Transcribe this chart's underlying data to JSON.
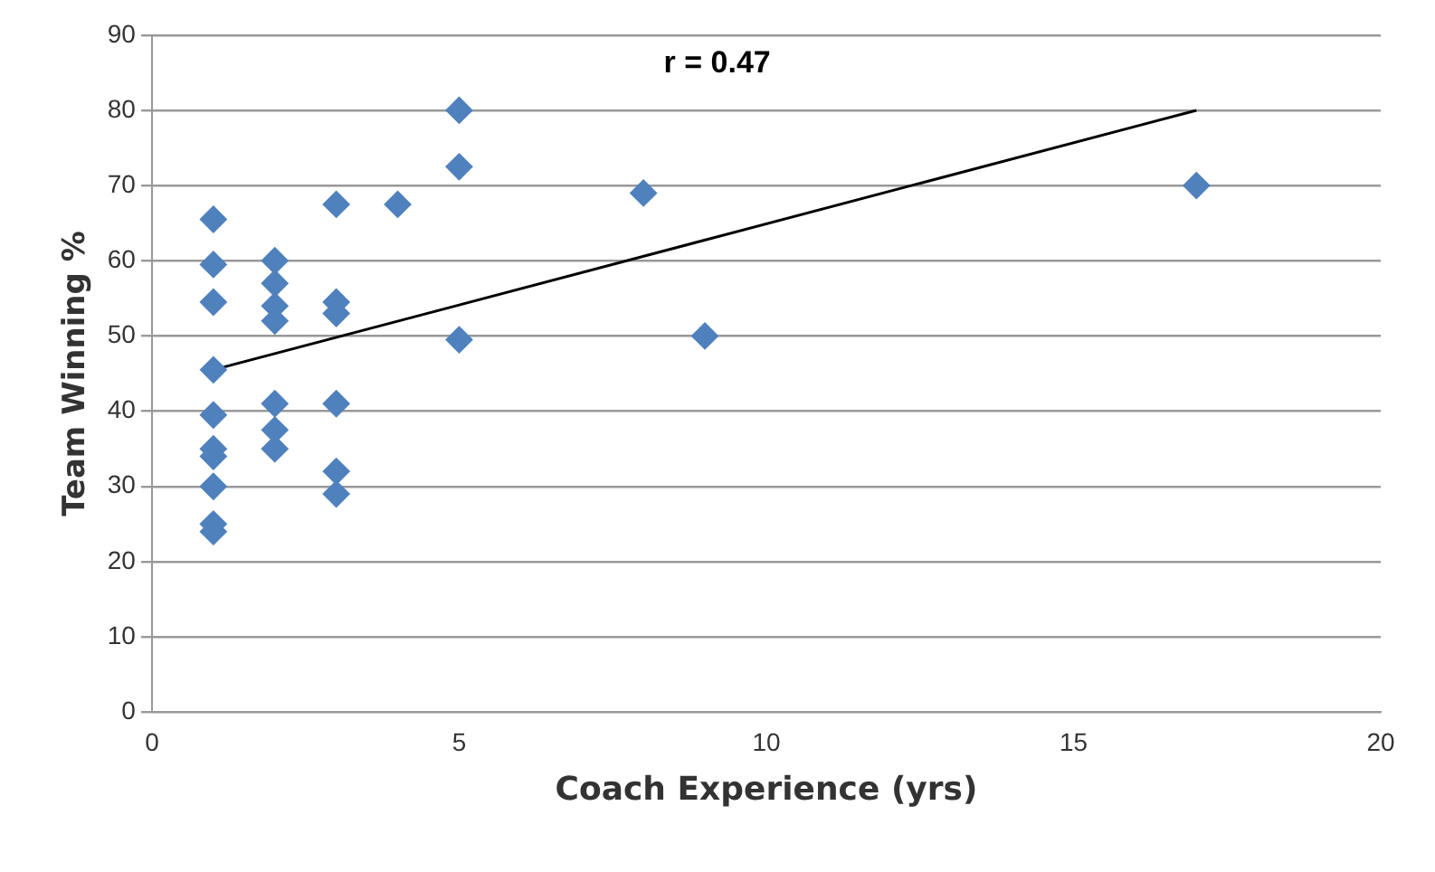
{
  "chart_data": {
    "type": "scatter",
    "xlabel": "Coach Experience (yrs)",
    "ylabel": "Team Winning %",
    "annotations": [
      "r = 0.47"
    ],
    "xlim": [
      0,
      20
    ],
    "xticks": [
      0,
      5,
      10,
      15,
      20
    ],
    "ylim": [
      0,
      90
    ],
    "yticks": [
      0,
      10,
      20,
      30,
      40,
      50,
      60,
      70,
      80,
      90
    ],
    "grid": "y",
    "legend": false,
    "series": [
      {
        "marker": "diamond",
        "color": "#4f81bd",
        "x": [
          1,
          1,
          1,
          1,
          1,
          1,
          1,
          1,
          1,
          1,
          2,
          2,
          2,
          2,
          2,
          2,
          2,
          3,
          3,
          3,
          3,
          3,
          3,
          4,
          5,
          5,
          5,
          8,
          9,
          17
        ],
        "values": [
          65.5,
          59.5,
          54.5,
          45.5,
          39.5,
          35,
          34,
          30,
          25,
          24,
          60,
          57,
          54,
          52,
          41,
          37.5,
          35,
          67.5,
          54.5,
          53,
          41,
          32,
          29,
          67.5,
          80,
          72.5,
          49.5,
          69,
          50,
          70
        ]
      },
      {
        "type": "line",
        "color": "#000000",
        "x": [
          1,
          17
        ],
        "values": [
          45.5,
          80
        ]
      }
    ]
  }
}
